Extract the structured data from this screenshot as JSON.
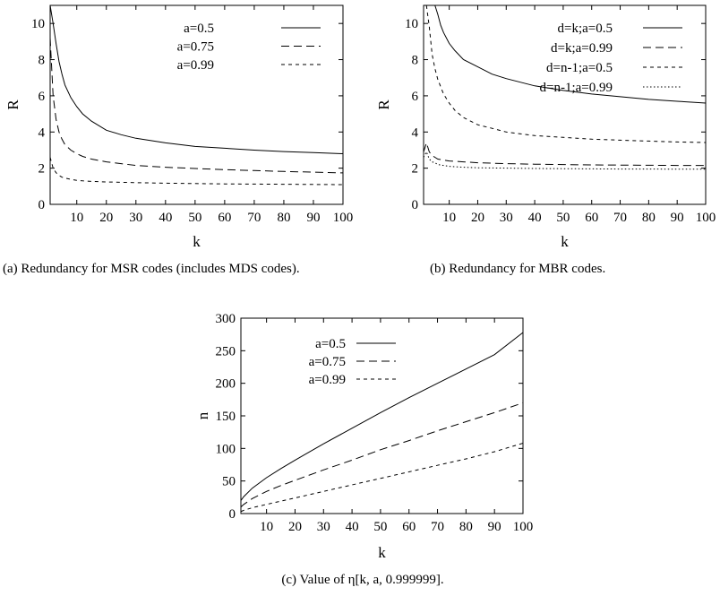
{
  "chart_data": [
    {
      "type": "line",
      "caption": "(a) Redundancy for MSR codes (includes MDS codes).",
      "xlabel": "k",
      "ylabel": "R",
      "xlim": [
        1,
        100
      ],
      "ylim": [
        0,
        11
      ],
      "xticks": [
        10,
        20,
        30,
        40,
        50,
        60,
        70,
        80,
        90,
        100
      ],
      "yticks": [
        0,
        2,
        4,
        6,
        8,
        10
      ],
      "legend_position": "top-right",
      "series": [
        {
          "name": "a=0.5",
          "style": "solid",
          "x": [
            1,
            2,
            3,
            4,
            5,
            6,
            8,
            10,
            12,
            15,
            20,
            25,
            30,
            40,
            50,
            60,
            70,
            80,
            90,
            100
          ],
          "y": [
            11.0,
            10.0,
            8.9,
            7.9,
            7.2,
            6.6,
            5.9,
            5.4,
            5.0,
            4.6,
            4.1,
            3.85,
            3.65,
            3.4,
            3.2,
            3.1,
            3.0,
            2.92,
            2.86,
            2.8
          ]
        },
        {
          "name": "a=0.75",
          "style": "dashed",
          "x": [
            1,
            2,
            3,
            4,
            5,
            6,
            8,
            10,
            12,
            15,
            20,
            25,
            30,
            40,
            50,
            60,
            70,
            80,
            90,
            100
          ],
          "y": [
            9.2,
            6.0,
            4.7,
            4.0,
            3.6,
            3.3,
            3.0,
            2.8,
            2.65,
            2.5,
            2.35,
            2.25,
            2.15,
            2.05,
            1.98,
            1.92,
            1.87,
            1.82,
            1.78,
            1.74
          ]
        },
        {
          "name": "a=0.99",
          "style": "dotted",
          "x": [
            1,
            2,
            3,
            4,
            5,
            6,
            8,
            10,
            12,
            15,
            20,
            25,
            30,
            40,
            50,
            60,
            70,
            80,
            90,
            100
          ],
          "y": [
            2.6,
            2.0,
            1.75,
            1.6,
            1.5,
            1.45,
            1.38,
            1.33,
            1.3,
            1.27,
            1.24,
            1.22,
            1.2,
            1.17,
            1.15,
            1.13,
            1.12,
            1.11,
            1.1,
            1.09
          ]
        }
      ]
    },
    {
      "type": "line",
      "caption": "(b) Redundancy for MBR codes.",
      "xlabel": "k",
      "ylabel": "R",
      "xlim": [
        1,
        100
      ],
      "ylim": [
        0,
        11
      ],
      "xticks": [
        10,
        20,
        30,
        40,
        50,
        60,
        70,
        80,
        90,
        100
      ],
      "yticks": [
        0,
        2,
        4,
        6,
        8,
        10
      ],
      "legend_position": "top-right",
      "series": [
        {
          "name": "d=k;a=0.5",
          "style": "solid",
          "x": [
            5,
            6,
            7,
            8,
            10,
            12,
            15,
            20,
            25,
            30,
            40,
            50,
            60,
            70,
            80,
            90,
            100
          ],
          "y": [
            11.0,
            10.5,
            9.9,
            9.5,
            8.9,
            8.5,
            8.0,
            7.6,
            7.2,
            6.95,
            6.55,
            6.3,
            6.1,
            5.95,
            5.8,
            5.7,
            5.6
          ]
        },
        {
          "name": "d=k;a=0.99",
          "style": "dashed",
          "x": [
            1,
            2,
            3,
            4,
            5,
            6,
            8,
            10,
            15,
            20,
            30,
            40,
            50,
            60,
            70,
            80,
            90,
            100
          ],
          "y": [
            2.9,
            3.4,
            2.9,
            2.7,
            2.6,
            2.5,
            2.45,
            2.4,
            2.35,
            2.3,
            2.25,
            2.22,
            2.2,
            2.18,
            2.17,
            2.16,
            2.15,
            2.15
          ]
        },
        {
          "name": "d=n-1;a=0.5",
          "style": "dotted",
          "x": [
            2,
            3,
            4,
            5,
            6,
            8,
            10,
            12,
            15,
            20,
            25,
            30,
            40,
            50,
            60,
            70,
            80,
            90,
            100
          ],
          "y": [
            11.0,
            9.8,
            8.3,
            7.5,
            6.9,
            6.1,
            5.6,
            5.2,
            4.8,
            4.4,
            4.2,
            4.0,
            3.8,
            3.7,
            3.6,
            3.55,
            3.5,
            3.45,
            3.42
          ]
        },
        {
          "name": "d=n-1;a=0.99",
          "style": "fine-dotted",
          "x": [
            1,
            2,
            3,
            4,
            5,
            6,
            8,
            10,
            15,
            20,
            30,
            40,
            50,
            60,
            70,
            80,
            90,
            100
          ],
          "y": [
            2.6,
            2.9,
            2.5,
            2.35,
            2.3,
            2.2,
            2.15,
            2.1,
            2.05,
            2.02,
            2.0,
            1.98,
            1.97,
            1.96,
            1.95,
            1.95,
            1.94,
            1.94
          ]
        }
      ]
    },
    {
      "type": "line",
      "caption": "(c) Value of η[k, a, 0.999999].",
      "xlabel": "k",
      "ylabel": "n",
      "xlim": [
        1,
        100
      ],
      "ylim": [
        0,
        300
      ],
      "xticks": [
        10,
        20,
        30,
        40,
        50,
        60,
        70,
        80,
        90,
        100
      ],
      "yticks": [
        0,
        50,
        100,
        150,
        200,
        250,
        300
      ],
      "legend_position": "top-left",
      "series": [
        {
          "name": "a=0.5",
          "style": "solid",
          "x": [
            1,
            2,
            5,
            10,
            15,
            20,
            30,
            40,
            50,
            60,
            70,
            80,
            90,
            100
          ],
          "y": [
            20,
            26,
            39,
            55,
            69,
            82,
            107,
            131,
            155,
            178,
            200,
            222,
            244,
            278
          ]
        },
        {
          "name": "a=0.75",
          "style": "dashed",
          "x": [
            1,
            2,
            5,
            10,
            15,
            20,
            30,
            40,
            50,
            60,
            70,
            80,
            90,
            100
          ],
          "y": [
            10,
            14,
            23,
            34,
            43,
            51,
            67,
            82,
            98,
            112,
            127,
            141,
            155,
            170
          ]
        },
        {
          "name": "a=0.99",
          "style": "dotted",
          "x": [
            1,
            2,
            5,
            10,
            15,
            20,
            30,
            40,
            50,
            60,
            70,
            80,
            90,
            100
          ],
          "y": [
            3,
            5,
            9,
            14,
            19,
            24,
            34,
            44,
            54,
            64,
            74,
            84,
            95,
            108
          ]
        }
      ]
    }
  ]
}
